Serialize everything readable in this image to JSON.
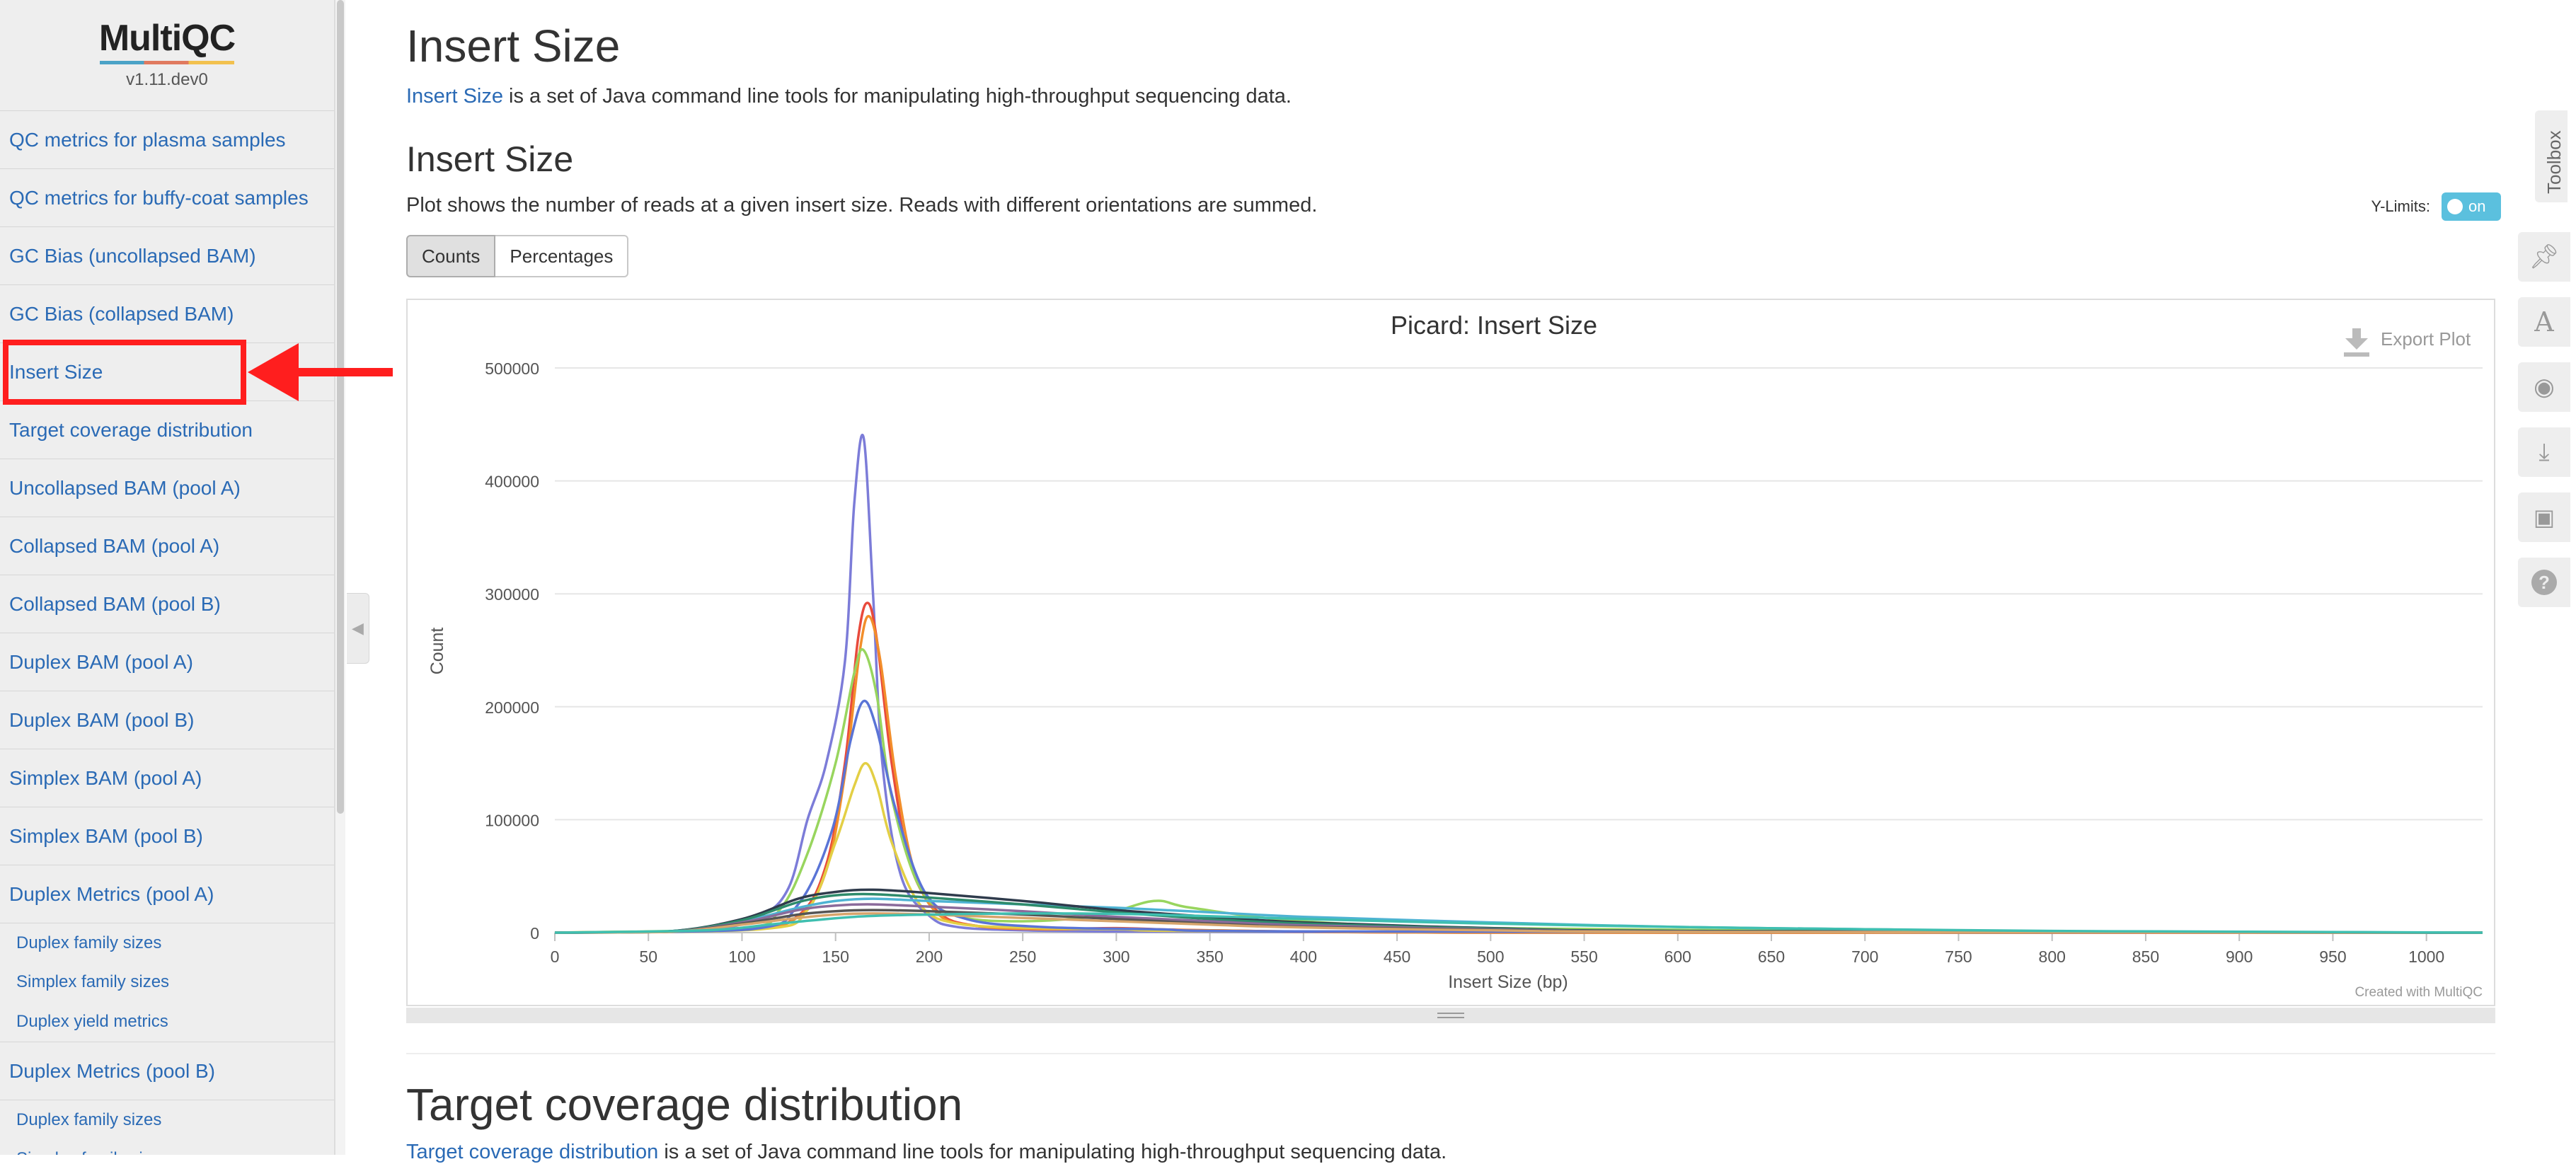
{
  "sidebar": {
    "logo": "MultiQC",
    "version": "v1.11.dev0",
    "items": [
      {
        "label": "QC metrics for plasma samples",
        "type": "item"
      },
      {
        "label": "QC metrics for buffy-coat samples",
        "type": "item"
      },
      {
        "label": "GC Bias (uncollapsed BAM)",
        "type": "item"
      },
      {
        "label": "GC Bias (collapsed BAM)",
        "type": "item"
      },
      {
        "label": "Insert Size",
        "type": "item"
      },
      {
        "label": "Target coverage distribution",
        "type": "item"
      },
      {
        "label": "Uncollapsed BAM (pool A)",
        "type": "item"
      },
      {
        "label": "Collapsed BAM (pool A)",
        "type": "item"
      },
      {
        "label": "Collapsed BAM (pool B)",
        "type": "item"
      },
      {
        "label": "Duplex BAM (pool A)",
        "type": "item"
      },
      {
        "label": "Duplex BAM (pool B)",
        "type": "item"
      },
      {
        "label": "Simplex BAM (pool A)",
        "type": "item"
      },
      {
        "label": "Simplex BAM (pool B)",
        "type": "item"
      },
      {
        "label": "Duplex Metrics (pool A)",
        "type": "item"
      },
      {
        "label": "Duplex family sizes",
        "type": "sub"
      },
      {
        "label": "Simplex family sizes",
        "type": "sub"
      },
      {
        "label": "Duplex yield metrics",
        "type": "sub"
      },
      {
        "label": "Duplex Metrics (pool B)",
        "type": "item"
      },
      {
        "label": "Duplex family sizes",
        "type": "sub"
      },
      {
        "label": "Simplex family sizes",
        "type": "sub"
      }
    ]
  },
  "section": {
    "title": "Insert Size",
    "intro_link": "Insert Size",
    "intro_text": " is a set of Java command line tools for manipulating high-throughput sequencing data.",
    "subtitle": "Insert Size",
    "description": "Plot shows the number of reads at a given insert size. Reads with different orientations are summed.",
    "ylimits_label": "Y-Limits:",
    "ylimits_toggle": "on",
    "buttons": {
      "counts": "Counts",
      "percentages": "Percentages"
    }
  },
  "next_section": {
    "title": "Target coverage distribution",
    "intro_link": "Target coverage distribution",
    "intro_text": " is a set of Java command line tools for manipulating high-throughput sequencing data."
  },
  "toolbox": {
    "label": "Toolbox"
  },
  "chart_data": {
    "type": "line",
    "title": "Picard: Insert Size",
    "xlabel": "Insert Size (bp)",
    "ylabel": "Count",
    "export_label": "Export Plot",
    "credit": "Created with MultiQC",
    "xlim": [
      0,
      1030
    ],
    "ylim": [
      0,
      500000
    ],
    "xticks": [
      0,
      50,
      100,
      150,
      200,
      250,
      300,
      350,
      400,
      450,
      500,
      550,
      600,
      650,
      700,
      750,
      800,
      850,
      900,
      950,
      1000
    ],
    "yticks": [
      0,
      100000,
      200000,
      300000,
      400000,
      500000
    ],
    "grid": true,
    "series": [
      {
        "color": "#7c7cd8",
        "x": [
          0,
          80,
          110,
          125,
          135,
          145,
          155,
          160,
          165,
          170,
          175,
          185,
          200,
          215,
          250,
          300,
          400,
          600,
          1030
        ],
        "values": [
          0,
          2000,
          15000,
          40000,
          100000,
          150000,
          240000,
          380000,
          438000,
          300000,
          150000,
          50000,
          15000,
          5000,
          2000,
          1000,
          500,
          0,
          0
        ]
      },
      {
        "color": "#e84a3c",
        "x": [
          0,
          100,
          130,
          145,
          155,
          162,
          167,
          172,
          180,
          190,
          205,
          225,
          260,
          300,
          350,
          500,
          1030
        ],
        "values": [
          0,
          3000,
          15000,
          60000,
          150000,
          260000,
          292000,
          260000,
          150000,
          60000,
          18000,
          6000,
          3000,
          4000,
          2000,
          0,
          0
        ]
      },
      {
        "color": "#f28e2b",
        "x": [
          0,
          100,
          130,
          145,
          155,
          163,
          168,
          174,
          182,
          192,
          205,
          225,
          260,
          300,
          350,
          500,
          1030
        ],
        "values": [
          0,
          3000,
          14000,
          55000,
          140000,
          250000,
          280000,
          240000,
          140000,
          55000,
          16000,
          6000,
          3000,
          3500,
          2000,
          0,
          0
        ]
      },
      {
        "color": "#98d55e",
        "x": [
          0,
          100,
          120,
          135,
          150,
          160,
          165,
          172,
          180,
          195,
          215,
          250,
          290,
          320,
          340,
          400,
          500,
          700,
          1030
        ],
        "values": [
          0,
          4000,
          20000,
          70000,
          150000,
          230000,
          250000,
          210000,
          120000,
          40000,
          15000,
          10000,
          15000,
          28000,
          22000,
          10000,
          4000,
          1000,
          0
        ]
      },
      {
        "color": "#e3cf45",
        "x": [
          0,
          110,
          135,
          150,
          160,
          166,
          172,
          180,
          195,
          215,
          260,
          300,
          400,
          1030
        ],
        "values": [
          0,
          3000,
          20000,
          80000,
          130000,
          150000,
          130000,
          80000,
          25000,
          8000,
          4000,
          3000,
          1000,
          0
        ]
      },
      {
        "color": "#5a74d6",
        "x": [
          0,
          105,
          130,
          148,
          158,
          165,
          172,
          182,
          198,
          220,
          260,
          320,
          420,
          1030
        ],
        "values": [
          0,
          3000,
          25000,
          90000,
          170000,
          205000,
          180000,
          110000,
          35000,
          12000,
          5000,
          3000,
          1000,
          0
        ]
      },
      {
        "color": "#4eb3d3",
        "x": [
          0,
          60,
          100,
          130,
          150,
          170,
          200,
          250,
          300,
          350,
          400,
          500,
          600,
          700,
          800,
          1030
        ],
        "values": [
          0,
          1000,
          10000,
          22000,
          28000,
          30000,
          28000,
          25000,
          22000,
          18000,
          14000,
          9000,
          5000,
          3000,
          1000,
          0
        ]
      },
      {
        "color": "#2f3b4c",
        "x": [
          0,
          60,
          100,
          130,
          150,
          170,
          200,
          250,
          300,
          350,
          400,
          500,
          600,
          1030
        ],
        "values": [
          0,
          1000,
          12000,
          30000,
          36000,
          38000,
          35000,
          28000,
          20000,
          14000,
          9000,
          4000,
          1500,
          0
        ]
      },
      {
        "color": "#2e8b6b",
        "x": [
          0,
          60,
          100,
          130,
          150,
          170,
          200,
          250,
          300,
          350,
          400,
          500,
          600,
          1030
        ],
        "values": [
          0,
          1000,
          11000,
          27000,
          33000,
          34000,
          31000,
          25000,
          18000,
          12000,
          8000,
          3500,
          1200,
          0
        ]
      },
      {
        "color": "#8b6b9b",
        "x": [
          0,
          60,
          100,
          130,
          150,
          170,
          200,
          250,
          300,
          350,
          400,
          500,
          600,
          1030
        ],
        "values": [
          0,
          800,
          9000,
          20000,
          24000,
          25000,
          23000,
          19000,
          14000,
          10000,
          6500,
          3000,
          1000,
          0
        ]
      },
      {
        "color": "#555555",
        "x": [
          0,
          60,
          100,
          130,
          150,
          170,
          200,
          250,
          300,
          350,
          400,
          500,
          600,
          1030
        ],
        "values": [
          0,
          700,
          8000,
          16000,
          19000,
          20000,
          19000,
          16000,
          12000,
          8000,
          5000,
          2500,
          800,
          0
        ]
      },
      {
        "color": "#d7a46b",
        "x": [
          0,
          60,
          100,
          130,
          150,
          170,
          200,
          250,
          300,
          350,
          400,
          500,
          600,
          1030
        ],
        "values": [
          0,
          600,
          7000,
          13000,
          16000,
          17000,
          16000,
          13000,
          10000,
          7000,
          4500,
          2000,
          700,
          0
        ]
      },
      {
        "color": "#3fbfb0",
        "x": [
          0,
          80,
          120,
          160,
          200,
          260,
          320,
          400,
          500,
          600,
          700,
          800,
          900,
          1030
        ],
        "values": [
          0,
          2000,
          8000,
          14000,
          16000,
          17000,
          16000,
          12000,
          8000,
          5000,
          3000,
          1500,
          800,
          0
        ]
      }
    ]
  }
}
